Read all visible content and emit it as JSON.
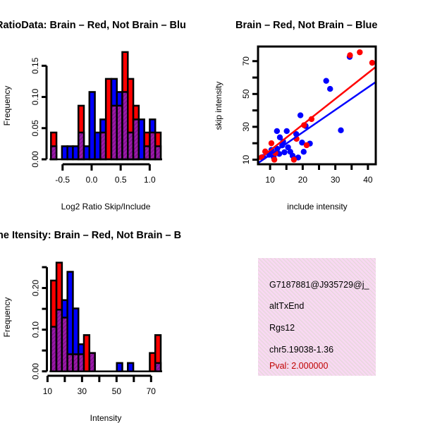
{
  "colors": {
    "red": "#ff0000",
    "blue": "#0000ff",
    "overlap": "#9a1aa8",
    "panel": "#f8d8f2",
    "pval": "#c00000"
  },
  "chart_data": [
    {
      "type": "bar",
      "subtype": "overlaid-histogram",
      "title": "RatioData: Brain – Red, Not Brain – Blu",
      "xlabel": "Log2 Ratio Skip/Include",
      "ylabel": "Frequency",
      "xlim": [
        -0.7,
        1.19
      ],
      "ylim": [
        0,
        0.15
      ],
      "xticks": [
        -0.5,
        0.0,
        0.5,
        1.0
      ],
      "xtick_labels": [
        "-0.5",
        "0.0",
        "0.5",
        "1.0"
      ],
      "yticks": [
        0,
        0.05,
        0.1,
        0.15
      ],
      "ytick_labels": [
        "0.00",
        "0.05",
        "0.10",
        "0.15"
      ],
      "bin_start": -0.7,
      "bin_width": 0.0945,
      "series": [
        {
          "name": "Brain",
          "color": "red",
          "values": [
            0.043,
            0,
            0,
            0,
            0,
            0.086,
            0,
            0,
            0,
            0.043,
            0.129,
            0.086,
            0.086,
            0.172,
            0.129,
            0.086,
            0,
            0.043,
            0.043,
            0.043
          ]
        },
        {
          "name": "Not Brain",
          "color": "blue",
          "values": [
            0.021,
            0,
            0.021,
            0.021,
            0.021,
            0.043,
            0.021,
            0.108,
            0.043,
            0.064,
            0,
            0.129,
            0.108,
            0.108,
            0.043,
            0.064,
            0.064,
            0.021,
            0.064,
            0.021
          ]
        }
      ]
    },
    {
      "type": "scatter",
      "title": "Brain – Red, Not Brain – Blue",
      "xlabel": "include intensity",
      "ylabel": "skip intensity",
      "xlim": [
        6.3,
        42.4
      ],
      "ylim": [
        7.2,
        78.9
      ],
      "xticks": [
        10,
        15,
        20,
        25,
        30,
        35,
        40
      ],
      "xtick_labels": [
        "10",
        "20",
        "30",
        "40"
      ],
      "xtick_label_values": [
        10,
        20,
        30,
        40
      ],
      "yticks": [
        10,
        20,
        30,
        40,
        50,
        60,
        70
      ],
      "ytick_labels": [
        "10",
        "30",
        "50",
        "70"
      ],
      "ytick_label_values": [
        10,
        30,
        50,
        70
      ],
      "series": [
        {
          "name": "Brain",
          "color": "red",
          "points": [
            [
              37.5,
              75.4
            ],
            [
              34.5,
              73.6
            ],
            [
              41.3,
              69
            ],
            [
              22.7,
              34.7
            ],
            [
              20.4,
              31
            ],
            [
              21.2,
              18.8
            ],
            [
              10.4,
              20
            ],
            [
              8.5,
              15
            ],
            [
              11.3,
              10
            ],
            [
              17.3,
              10
            ],
            [
              18.1,
              22.7
            ],
            [
              7.4,
              11.4
            ],
            [
              11.6,
              14
            ]
          ],
          "fit": [
            [
              6.3,
              9.8
            ],
            [
              42.4,
              66.5
            ]
          ]
        },
        {
          "name": "Not Brain",
          "color": "blue",
          "points": [
            [
              34.4,
              72.6
            ],
            [
              27.2,
              58
            ],
            [
              28.4,
              53.1
            ],
            [
              31.7,
              27.9
            ],
            [
              19.3,
              37
            ],
            [
              22.2,
              19.8
            ],
            [
              19.8,
              20.4
            ],
            [
              20.3,
              14.8
            ],
            [
              18.6,
              11.3
            ],
            [
              16.2,
              14.8
            ],
            [
              15.1,
              27.4
            ],
            [
              12.1,
              27.4
            ],
            [
              13,
              23.6
            ],
            [
              13.7,
              18.7
            ],
            [
              11.1,
              11.6
            ],
            [
              9.7,
              13
            ],
            [
              14.4,
              14.5
            ],
            [
              16.9,
              12.4
            ],
            [
              18,
              25.6
            ],
            [
              20.9,
              30.5
            ],
            [
              7.9,
              11.6
            ],
            [
              12.2,
              16.6
            ],
            [
              10.4,
              15.9
            ],
            [
              14,
              21
            ],
            [
              12.8,
              13.5
            ],
            [
              15.5,
              17.5
            ]
          ],
          "fit": [
            [
              6.3,
              7.9
            ],
            [
              42.4,
              57.3
            ]
          ]
        }
      ]
    },
    {
      "type": "bar",
      "subtype": "overlaid-histogram",
      "title": "ne Itensity: Brain – Red, Not Brain – B",
      "xlabel": "Intensity",
      "ylabel": "Frequency",
      "xlim": [
        12,
        75.6
      ],
      "ylim": [
        0,
        0.25
      ],
      "xticks": [
        10,
        20,
        30,
        40,
        50,
        60,
        70
      ],
      "xtick_labels": [
        "10",
        "30",
        "50",
        "70"
      ],
      "xtick_label_values": [
        10,
        30,
        50,
        70
      ],
      "yticks": [
        0,
        0.05,
        0.1,
        0.15,
        0.2,
        0.25
      ],
      "ytick_labels": [
        "0.00",
        "0.10",
        "0.20"
      ],
      "ytick_label_values": [
        0,
        0.1,
        0.2
      ],
      "bin_start": 12,
      "bin_width": 3.18,
      "series": [
        {
          "name": "Brain",
          "color": "red",
          "values": [
            0.218,
            0.261,
            0.129,
            0.041,
            0.041,
            0.041,
            0.087,
            0.044,
            0,
            0,
            0,
            0,
            0,
            0,
            0,
            0,
            0,
            0,
            0.044,
            0.087
          ]
        },
        {
          "name": "Not Brain",
          "color": "blue",
          "values": [
            0.107,
            0.148,
            0.171,
            0.239,
            0.151,
            0.065,
            0,
            0.044,
            0,
            0,
            0,
            0,
            0.02,
            0,
            0.02,
            0,
            0,
            0,
            0,
            0.02
          ]
        }
      ]
    }
  ],
  "info_panel": {
    "id": "G7187881@J935729@j_",
    "type": "altTxEnd",
    "gene": "Rgs12",
    "location": "chr5.19038-1.36",
    "pval": "Pval: 2.000000"
  }
}
